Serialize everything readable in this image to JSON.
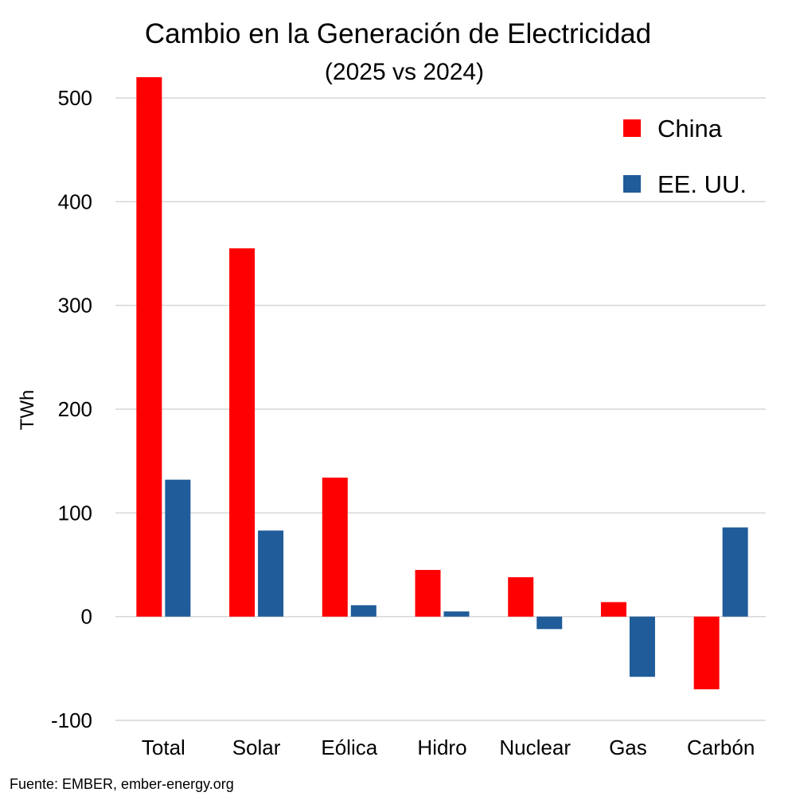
{
  "chart_data": {
    "type": "bar",
    "title": "Cambio en la Generación de Electricidad",
    "subtitle": "(2025 vs 2024)",
    "xlabel": "",
    "ylabel": "TWh",
    "ylim": [
      -100,
      500
    ],
    "yticks": [
      -100,
      0,
      100,
      200,
      300,
      400,
      500
    ],
    "grid": true,
    "legend_position": "top-right",
    "categories": [
      "Total",
      "Solar",
      "Eólica",
      "Hidro",
      "Nuclear",
      "Gas",
      "Carbón"
    ],
    "series": [
      {
        "name": "China",
        "color": "#ff0000",
        "values": [
          520,
          355,
          134,
          45,
          38,
          14,
          -70
        ]
      },
      {
        "name": "EE. UU.",
        "color": "#1f5c99",
        "values": [
          132,
          83,
          11,
          5,
          -12,
          -58,
          86
        ]
      }
    ],
    "source": "Fuente: EMBER, ember-energy.org"
  }
}
